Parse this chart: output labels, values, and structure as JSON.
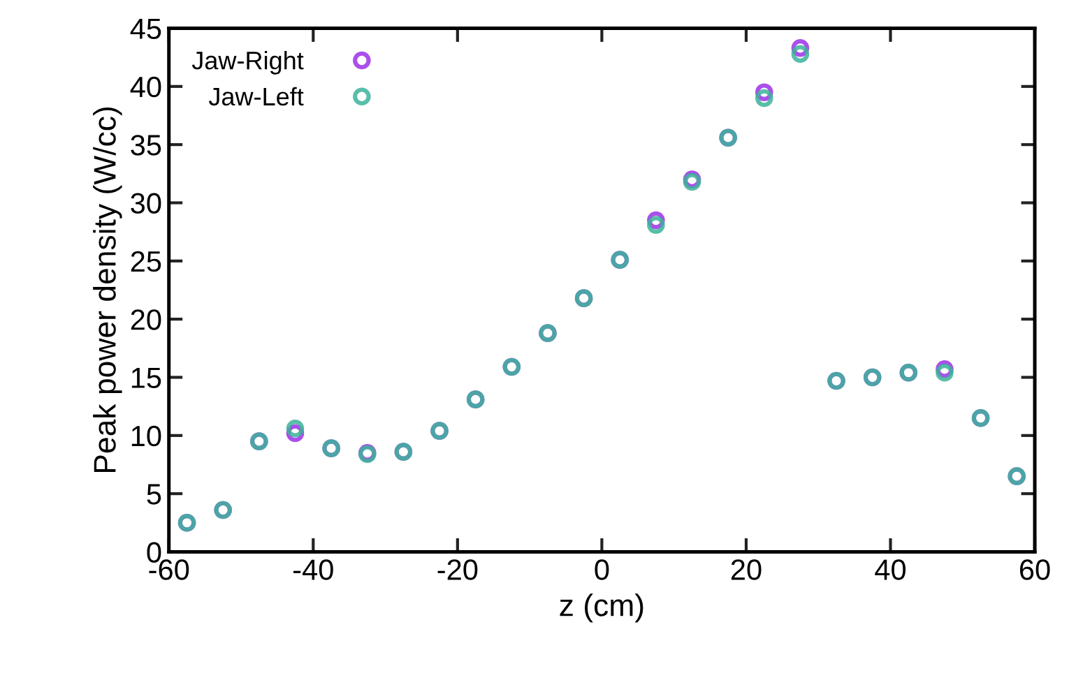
{
  "chart_data": {
    "type": "scatter",
    "xlabel": "z (cm)",
    "ylabel": "Peak power density (W/cc)",
    "x": [
      -57.5,
      -52.5,
      -47.5,
      -42.5,
      -37.5,
      -32.5,
      -27.5,
      -22.5,
      -17.5,
      -12.5,
      -7.5,
      -2.5,
      2.5,
      7.5,
      12.5,
      17.5,
      22.5,
      27.5,
      32.5,
      37.5,
      42.5,
      47.5,
      52.5,
      57.5
    ],
    "series": [
      {
        "name": "Jaw-Right",
        "color": "#9b30e8",
        "values": [
          2.5,
          3.6,
          9.5,
          10.2,
          8.9,
          8.5,
          8.6,
          10.4,
          13.1,
          15.9,
          18.8,
          21.8,
          25.1,
          28.5,
          32.0,
          35.6,
          39.5,
          43.3,
          14.7,
          15.0,
          15.4,
          15.7,
          11.5,
          6.5
        ]
      },
      {
        "name": "Jaw-Left",
        "color": "#3cb39a",
        "values": [
          2.5,
          3.6,
          9.5,
          10.6,
          8.9,
          8.4,
          8.6,
          10.4,
          13.1,
          15.9,
          18.8,
          21.8,
          25.1,
          28.1,
          31.8,
          35.6,
          39.0,
          42.8,
          14.7,
          15.0,
          15.4,
          15.4,
          11.5,
          6.5
        ]
      }
    ],
    "xlim": [
      -60,
      60
    ],
    "xticks": [
      -60,
      -40,
      -20,
      0,
      20,
      40,
      60
    ],
    "ylim": [
      0,
      45
    ],
    "yticks": [
      0,
      5,
      10,
      15,
      20,
      25,
      30,
      35,
      40,
      45
    ],
    "grid": false,
    "legend": "top left",
    "marker": "circle"
  }
}
